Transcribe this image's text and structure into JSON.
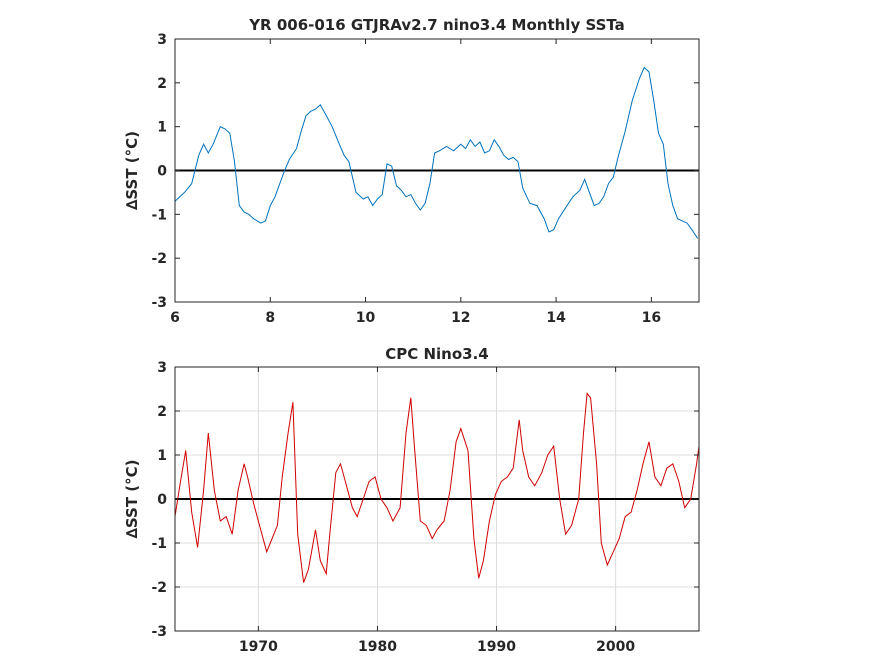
{
  "chart_data": [
    {
      "type": "line",
      "title": "YR 006-016 GTJRAv2.7 nino3.4 Monthly SSTa",
      "xlabel": "",
      "ylabel": "∆SST (°C)",
      "xlim": [
        6,
        17
      ],
      "ylim": [
        -3,
        3
      ],
      "xticks": [
        "6",
        "8",
        "10",
        "12",
        "14",
        "16"
      ],
      "yticks": [
        "-3",
        "-2",
        "-1",
        "0",
        "1",
        "2",
        "3"
      ],
      "grid": false,
      "zero_line": true,
      "colors": {
        "series": "#0072bd",
        "zero_line": "#000000"
      },
      "series": [
        {
          "x": [
            6.0,
            6.2,
            6.35,
            6.5,
            6.6,
            6.7,
            6.8,
            6.95,
            7.05,
            7.15,
            7.25,
            7.35,
            7.45,
            7.55,
            7.65,
            7.8,
            7.9,
            8.0,
            8.1,
            8.2,
            8.3,
            8.4,
            8.55,
            8.65,
            8.75,
            8.85,
            8.95,
            9.05,
            9.15,
            9.3,
            9.45,
            9.55,
            9.65,
            9.8,
            9.95,
            10.05,
            10.15,
            10.25,
            10.35,
            10.45,
            10.55,
            10.65,
            10.75,
            10.85,
            10.95,
            11.05,
            11.15,
            11.25,
            11.35,
            11.45,
            11.55,
            11.7,
            11.85,
            12.0,
            12.1,
            12.2,
            12.3,
            12.4,
            12.5,
            12.6,
            12.7,
            12.8,
            12.9,
            13.0,
            13.1,
            13.2,
            13.3,
            13.45,
            13.6,
            13.75,
            13.85,
            13.95,
            14.05,
            14.2,
            14.35,
            14.5,
            14.6,
            14.7,
            14.8,
            14.9,
            15.0,
            15.1,
            15.2,
            15.3,
            15.45,
            15.6,
            15.75,
            15.85,
            15.95,
            16.05,
            16.15,
            16.25,
            16.35,
            16.45,
            16.55,
            16.65,
            16.75,
            16.85,
            16.97
          ],
          "y": [
            -0.7,
            -0.5,
            -0.3,
            0.35,
            0.6,
            0.4,
            0.6,
            1.0,
            0.95,
            0.85,
            0.2,
            -0.8,
            -0.95,
            -1.0,
            -1.1,
            -1.2,
            -1.15,
            -0.8,
            -0.6,
            -0.3,
            0.0,
            0.25,
            0.5,
            0.9,
            1.25,
            1.35,
            1.4,
            1.5,
            1.3,
            1.0,
            0.6,
            0.35,
            0.2,
            -0.5,
            -0.65,
            -0.6,
            -0.8,
            -0.65,
            -0.55,
            0.15,
            0.1,
            -0.35,
            -0.45,
            -0.6,
            -0.55,
            -0.75,
            -0.9,
            -0.75,
            -0.3,
            0.4,
            0.45,
            0.55,
            0.45,
            0.6,
            0.5,
            0.7,
            0.55,
            0.65,
            0.4,
            0.45,
            0.7,
            0.55,
            0.35,
            0.25,
            0.3,
            0.2,
            -0.4,
            -0.75,
            -0.8,
            -1.1,
            -1.4,
            -1.35,
            -1.1,
            -0.85,
            -0.6,
            -0.45,
            -0.2,
            -0.5,
            -0.8,
            -0.75,
            -0.6,
            -0.3,
            -0.15,
            0.3,
            0.9,
            1.6,
            2.1,
            2.35,
            2.25,
            1.6,
            0.85,
            0.6,
            -0.3,
            -0.8,
            -1.1,
            -1.15,
            -1.2,
            -1.35,
            -1.55
          ]
        }
      ]
    },
    {
      "type": "line",
      "title": "CPC Nino3.4",
      "xlabel": "",
      "ylabel": "∆SST (°C)",
      "xlim": [
        1963,
        2007
      ],
      "ylim": [
        -3,
        3
      ],
      "xticks": [
        "1970",
        "1980",
        "1990",
        "2000"
      ],
      "yticks": [
        "-3",
        "-2",
        "-1",
        "0",
        "1",
        "2",
        "3"
      ],
      "grid": true,
      "zero_line": true,
      "colors": {
        "series": "#d00000",
        "zero_line": "#000000"
      },
      "series": [
        {
          "x": [
            1963.0,
            1963.4,
            1963.9,
            1964.4,
            1964.9,
            1965.4,
            1965.8,
            1966.3,
            1966.8,
            1967.3,
            1967.8,
            1968.3,
            1968.8,
            1969.1,
            1969.6,
            1970.2,
            1970.7,
            1971.0,
            1971.6,
            1972.0,
            1972.5,
            1972.9,
            1973.3,
            1973.8,
            1974.2,
            1974.8,
            1975.2,
            1975.7,
            1976.0,
            1976.5,
            1976.9,
            1977.4,
            1977.9,
            1978.3,
            1978.8,
            1979.3,
            1979.8,
            1980.3,
            1980.8,
            1981.3,
            1981.9,
            1982.4,
            1982.8,
            1983.1,
            1983.6,
            1984.1,
            1984.6,
            1985.0,
            1985.6,
            1986.1,
            1986.6,
            1987.0,
            1987.6,
            1988.1,
            1988.5,
            1988.9,
            1989.4,
            1989.9,
            1990.4,
            1990.9,
            1991.4,
            1991.9,
            1992.2,
            1992.7,
            1993.2,
            1993.8,
            1994.3,
            1994.8,
            1995.3,
            1995.8,
            1996.3,
            1996.9,
            1997.3,
            1997.6,
            1997.9,
            1998.4,
            1998.8,
            1999.3,
            1999.8,
            2000.3,
            2000.8,
            2001.3,
            2001.8,
            2002.3,
            2002.8,
            2003.3,
            2003.8,
            2004.3,
            2004.8,
            2005.3,
            2005.8,
            2006.3,
            2006.8,
            2007.0
          ],
          "y": [
            -0.4,
            0.3,
            1.1,
            -0.3,
            -1.1,
            0.2,
            1.5,
            0.2,
            -0.5,
            -0.4,
            -0.8,
            0.2,
            0.8,
            0.5,
            -0.1,
            -0.7,
            -1.2,
            -1.0,
            -0.6,
            0.5,
            1.5,
            2.2,
            -0.8,
            -1.9,
            -1.6,
            -0.7,
            -1.4,
            -1.7,
            -0.8,
            0.6,
            0.8,
            0.3,
            -0.2,
            -0.4,
            0.0,
            0.4,
            0.5,
            0.0,
            -0.2,
            -0.5,
            -0.2,
            1.5,
            2.3,
            1.2,
            -0.5,
            -0.6,
            -0.9,
            -0.7,
            -0.5,
            0.2,
            1.3,
            1.6,
            1.1,
            -0.9,
            -1.8,
            -1.4,
            -0.5,
            0.1,
            0.4,
            0.5,
            0.7,
            1.8,
            1.1,
            0.5,
            0.3,
            0.6,
            1.0,
            1.2,
            0.0,
            -0.8,
            -0.6,
            0.0,
            1.5,
            2.4,
            2.3,
            0.8,
            -1.0,
            -1.5,
            -1.2,
            -0.9,
            -0.4,
            -0.3,
            0.2,
            0.8,
            1.3,
            0.5,
            0.3,
            0.7,
            0.8,
            0.4,
            -0.2,
            0.0,
            0.8,
            1.2
          ]
        }
      ]
    }
  ]
}
